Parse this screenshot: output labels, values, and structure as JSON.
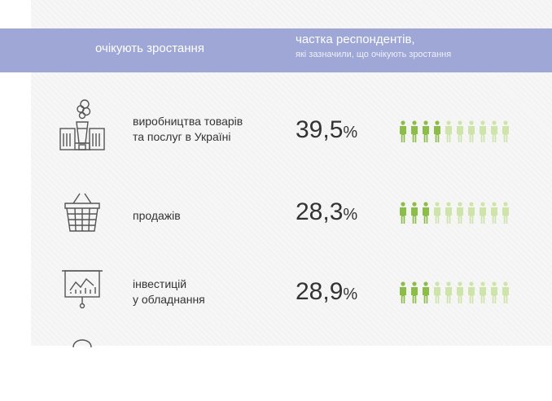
{
  "header": {
    "col1": "очікують зростання",
    "col2_title": "частка респондентів,",
    "col2_subtitle": "які зазначили, що очікують зростання"
  },
  "colors": {
    "header_bg": "#9ea7d6",
    "person_filled": "#8cbd46",
    "person_empty": "#cfe4a9",
    "icon_stroke": "#555555"
  },
  "chart_data": {
    "type": "pictogram",
    "units_total": 10,
    "rows": [
      {
        "label_lines": [
          "виробництва товарів",
          "та послуг в Україні"
        ],
        "value_text": "39,5",
        "pct_sign": "%",
        "value": 39.5,
        "icon": "factory-icon"
      },
      {
        "label_lines": [
          "продажів"
        ],
        "value_text": "28,3",
        "pct_sign": "%",
        "value": 28.3,
        "icon": "shopping-basket-icon"
      },
      {
        "label_lines": [
          "інвестицій",
          "у обладнання"
        ],
        "value_text": "28,9",
        "pct_sign": "%",
        "value": 28.9,
        "icon": "presentation-chart-icon"
      }
    ]
  }
}
